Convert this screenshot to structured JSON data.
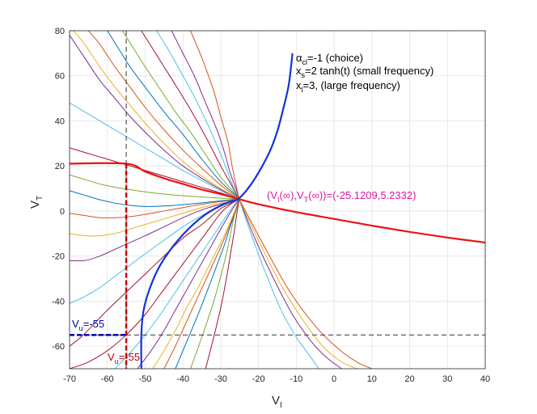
{
  "chart_data": {
    "type": "line",
    "xlabel": {
      "main": "V",
      "sub": "I"
    },
    "ylabel": {
      "main": "V",
      "sub": "T"
    },
    "xlim": [
      -70,
      40
    ],
    "ylim": [
      -70,
      80
    ],
    "xticks": [
      -70,
      -60,
      -50,
      -40,
      -30,
      -20,
      -10,
      0,
      10,
      20,
      30,
      40
    ],
    "yticks": [
      -60,
      -40,
      -20,
      0,
      20,
      40,
      60,
      80
    ],
    "grid": true,
    "legend_text": [
      {
        "main": "α",
        "sub": "cl",
        "rest": "=-1 (choice)"
      },
      {
        "main": "x",
        "sub": "s",
        "rest": "=2 tanh(t) (small frequency)"
      },
      {
        "main": "x",
        "sub": "l",
        "rest": "=3, (large frequency)"
      }
    ],
    "equilibrium": {
      "label": "(V_I(∞),V_T(∞))=(-25.1209,5.2332)",
      "label_parts": [
        "(V",
        "I",
        "(∞),V",
        "T",
        "(∞))=(-25.1209,5.2332)"
      ],
      "point": [
        -25.1209,
        5.2332
      ],
      "color": "#e0189e"
    },
    "thresholds": {
      "Vu": {
        "label_main": "V",
        "label_sub": "u",
        "label_rest": "=-55",
        "value": -55,
        "color": "#0000aa"
      },
      "Vl": {
        "label_main": "V",
        "label_sub": "u",
        "label_rest": "=-55",
        "value": -55,
        "color": "#cc0000"
      }
    },
    "series": [
      {
        "name": "red-nullcline",
        "color": "#ee1111",
        "width": 2.2,
        "x": [
          -70,
          -55,
          -50,
          -45,
          -40,
          -35,
          -30,
          -25,
          -20,
          -10,
          0,
          10,
          20,
          30,
          40
        ],
        "y": [
          21,
          21,
          17.5,
          14.5,
          12,
          9.5,
          7.5,
          5.2,
          3.0,
          -0.5,
          -3.5,
          -6.5,
          -9.3,
          -11.8,
          -14.0
        ]
      },
      {
        "name": "blue-nullcline",
        "color": "#1133dd",
        "width": 2.2,
        "x": [
          -51,
          -51,
          -50.5,
          -49.5,
          -48,
          -46,
          -43,
          -40,
          -37,
          -34,
          -31,
          -28,
          -25.5,
          -23,
          -20,
          -17,
          -15,
          -13.5,
          -12,
          -11
        ],
        "y": [
          -70,
          -55,
          -45,
          -38,
          -31,
          -24,
          -16.5,
          -10.5,
          -5.5,
          -1.5,
          1.5,
          3.8,
          5.2,
          9.5,
          17,
          26.5,
          35.5,
          45,
          56,
          70
        ]
      },
      {
        "name": "traj-1",
        "color": "#a2142f",
        "x": [
          -70,
          -67,
          -64,
          -60,
          -55,
          -50,
          -45,
          -40,
          -35,
          -30,
          -26,
          -25.1
        ],
        "y": [
          -60,
          -56,
          -51,
          -44,
          -36,
          -28,
          -20,
          -12,
          -6,
          1,
          4.5,
          5.2
        ]
      },
      {
        "name": "traj-2",
        "color": "#4dbeee",
        "x": [
          -70,
          -66,
          -62,
          -58,
          -54,
          -50,
          -45,
          -40,
          -35,
          -30,
          -26,
          -25.1
        ],
        "y": [
          -41,
          -38,
          -34,
          -29,
          -24,
          -19,
          -13,
          -7,
          -2,
          2.5,
          4.8,
          5.2
        ]
      },
      {
        "name": "traj-3",
        "color": "#7e2f8e",
        "x": [
          -70,
          -66,
          -62,
          -58,
          -54,
          -50,
          -45,
          -40,
          -35,
          -30,
          -26,
          -25.1
        ],
        "y": [
          -22,
          -22,
          -20,
          -17,
          -14,
          -11,
          -7,
          -3,
          0.5,
          3,
          4.9,
          5.2
        ]
      },
      {
        "name": "traj-4",
        "color": "#edb120",
        "x": [
          -70,
          -66,
          -62,
          -58,
          -54,
          -50,
          -45,
          -40,
          -35,
          -30,
          -26,
          -25.1
        ],
        "y": [
          -10,
          -11,
          -11,
          -10,
          -8,
          -6,
          -3.5,
          -1,
          1.5,
          3.5,
          5,
          5.2
        ]
      },
      {
        "name": "traj-5",
        "color": "#d95319",
        "x": [
          -70,
          -66,
          -62,
          -58,
          -54,
          -50,
          -45,
          -40,
          -35,
          -30,
          -26,
          -25.1
        ],
        "y": [
          -1,
          -2,
          -3,
          -3,
          -2.5,
          -1.5,
          0,
          1.5,
          3,
          4.2,
          5.1,
          5.2
        ]
      },
      {
        "name": "traj-6",
        "color": "#0072bd",
        "x": [
          -70,
          -66,
          -62,
          -58,
          -54,
          -50,
          -45,
          -40,
          -35,
          -30,
          -26,
          -25.1
        ],
        "y": [
          9,
          7,
          5,
          3.5,
          2.5,
          2,
          2.2,
          2.8,
          3.6,
          4.5,
          5.1,
          5.2
        ]
      },
      {
        "name": "traj-7",
        "color": "#77ac30",
        "x": [
          -70,
          -66,
          -62,
          -58,
          -54,
          -50,
          -45,
          -40,
          -35,
          -30,
          -26,
          -25.1
        ],
        "y": [
          16,
          14,
          12,
          10.5,
          9.5,
          8.5,
          7.5,
          6.8,
          6.2,
          5.7,
          5.3,
          5.2
        ]
      },
      {
        "name": "traj-8",
        "color": "#a2142f",
        "x": [
          -70,
          -66,
          -62,
          -58,
          -54,
          -50,
          -45,
          -40,
          -35,
          -30,
          -26,
          -25.1
        ],
        "y": [
          28,
          26,
          24,
          22,
          20,
          18,
          15.5,
          13,
          10.5,
          8,
          5.8,
          5.2
        ]
      },
      {
        "name": "traj-9",
        "color": "#4dbeee",
        "x": [
          -70,
          -66,
          -62,
          -58,
          -54,
          -50,
          -45,
          -40,
          -35,
          -30,
          -26,
          -25.1
        ],
        "y": [
          48,
          44,
          40,
          36,
          32,
          28,
          23,
          18,
          13.5,
          9,
          6,
          5.2
        ]
      },
      {
        "name": "traj-10",
        "color": "#7e2f8e",
        "x": [
          -70,
          -66,
          -62,
          -58,
          -54,
          -50,
          -45,
          -40,
          -35,
          -30,
          -26,
          -25.1
        ],
        "y": [
          78,
          68,
          58,
          50,
          42,
          35,
          27,
          20,
          14.5,
          9.5,
          6,
          5.2
        ]
      },
      {
        "name": "traj-11",
        "color": "#edb120",
        "x": [
          -69,
          -66,
          -62,
          -58,
          -54,
          -50,
          -45,
          -40,
          -35,
          -30,
          -26,
          -25.1
        ],
        "y": [
          80,
          74,
          64,
          55,
          47,
          39,
          30,
          22,
          15.5,
          10,
          6.2,
          5.2
        ]
      },
      {
        "name": "traj-12",
        "color": "#d95319",
        "x": [
          -65,
          -62,
          -58,
          -54,
          -50,
          -45,
          -40,
          -35,
          -30,
          -26,
          -25.1
        ],
        "y": [
          80,
          74,
          64,
          55,
          46,
          36,
          27,
          19,
          11.5,
          6.5,
          5.2
        ]
      },
      {
        "name": "traj-13",
        "color": "#0072bd",
        "x": [
          -60,
          -57,
          -54,
          -50,
          -45,
          -40,
          -35,
          -30,
          -26,
          -25.1
        ],
        "y": [
          80,
          72,
          64,
          55,
          44,
          34,
          23,
          13,
          7,
          5.2
        ]
      },
      {
        "name": "traj-14",
        "color": "#77ac30",
        "x": [
          -56,
          -53,
          -50,
          -46,
          -42,
          -38,
          -34,
          -30,
          -26,
          -25.1
        ],
        "y": [
          80,
          72,
          64,
          54,
          44,
          35,
          25,
          15,
          7.5,
          5.2
        ]
      },
      {
        "name": "traj-15",
        "color": "#a2142f",
        "x": [
          -51,
          -48,
          -45,
          -42,
          -38,
          -34,
          -30,
          -27,
          -25.1
        ],
        "y": [
          80,
          72,
          64,
          56,
          45,
          33,
          20,
          11,
          5.2
        ]
      },
      {
        "name": "traj-16",
        "color": "#4dbeee",
        "x": [
          -47,
          -44,
          -41,
          -38,
          -35,
          -32,
          -29,
          -27,
          -25.1
        ],
        "y": [
          80,
          72,
          63,
          54,
          44,
          33,
          21,
          12,
          5.2
        ]
      },
      {
        "name": "traj-17",
        "color": "#7e2f8e",
        "x": [
          -43,
          -40,
          -37,
          -34,
          -31,
          -29,
          -27.5,
          -26,
          -25.1
        ],
        "y": [
          80,
          70,
          60,
          48,
          36,
          26,
          17,
          10,
          5.2
        ]
      },
      {
        "name": "traj-18",
        "color": "#d95319",
        "x": [
          -38,
          -35,
          -32,
          -30,
          -28,
          -27,
          -26,
          -25.1
        ],
        "y": [
          80,
          68,
          54,
          42,
          30,
          20,
          12,
          5.2
        ]
      },
      {
        "name": "traj-19",
        "color": "#a2142f",
        "x": [
          -70,
          -65,
          -60,
          -55,
          -50,
          -46,
          -42,
          -38,
          -34,
          -30,
          -27,
          -25.1
        ],
        "y": [
          -70,
          -67,
          -62,
          -55,
          -46,
          -37,
          -28,
          -19,
          -10,
          -1,
          3.5,
          5.2
        ]
      },
      {
        "name": "traj-20",
        "color": "#4dbeee",
        "x": [
          -58,
          -54,
          -50,
          -46,
          -42,
          -38,
          -34,
          -30,
          -27,
          -25.1
        ],
        "y": [
          -70,
          -63,
          -55,
          -46,
          -36,
          -26,
          -16,
          -6,
          1.5,
          5.2
        ]
      },
      {
        "name": "traj-21",
        "color": "#7e2f8e",
        "x": [
          -52,
          -48,
          -45,
          -42,
          -39,
          -36,
          -33,
          -30,
          -27,
          -25.1
        ],
        "y": [
          -70,
          -61,
          -53,
          -44,
          -35,
          -26,
          -17,
          -8,
          0.5,
          5.2
        ]
      },
      {
        "name": "traj-22",
        "color": "#edb120",
        "x": [
          -48,
          -45,
          -42,
          -39,
          -36,
          -33,
          -30,
          -28,
          -26,
          -25.1
        ],
        "y": [
          -70,
          -62,
          -53,
          -43,
          -34,
          -24,
          -14,
          -7,
          1,
          5.2
        ]
      },
      {
        "name": "traj-23",
        "color": "#d95319",
        "x": [
          -45,
          -42,
          -39,
          -36,
          -33,
          -30,
          -28,
          -26.5,
          -25.1
        ],
        "y": [
          -70,
          -60,
          -49,
          -38,
          -27,
          -16,
          -8,
          -1.5,
          5.2
        ]
      },
      {
        "name": "traj-24",
        "color": "#0072bd",
        "x": [
          -42,
          -39,
          -36,
          -33,
          -31,
          -29,
          -27.5,
          -26,
          -25.1
        ],
        "y": [
          -70,
          -58,
          -46,
          -33,
          -24,
          -15,
          -7,
          0,
          5.2
        ]
      },
      {
        "name": "traj-25",
        "color": "#77ac30",
        "x": [
          -38,
          -35,
          -32,
          -30,
          -28.5,
          -27.5,
          -26.5,
          -25.1
        ],
        "y": [
          -70,
          -56,
          -41,
          -29,
          -19,
          -11,
          -3,
          5.2
        ]
      },
      {
        "name": "traj-26",
        "color": "#a2142f",
        "x": [
          -34,
          -32,
          -30,
          -28.5,
          -27.5,
          -26.5,
          -25.8,
          -25.1
        ],
        "y": [
          -70,
          -57,
          -43,
          -30,
          -20,
          -10,
          -2,
          5.2
        ]
      },
      {
        "name": "traj-27",
        "color": "#4dbeee",
        "x": [
          -25.1,
          -22,
          -18,
          -14,
          -10,
          -7,
          -4
        ],
        "y": [
          5.2,
          -10,
          -28,
          -44,
          -56,
          -63,
          -70
        ]
      },
      {
        "name": "traj-28",
        "color": "#7e2f8e",
        "x": [
          -25.1,
          -21,
          -16,
          -11,
          -6,
          -2,
          2
        ],
        "y": [
          5.2,
          -12,
          -30,
          -46,
          -58,
          -65,
          -70
        ]
      },
      {
        "name": "traj-29",
        "color": "#edb120",
        "x": [
          -25.1,
          -20,
          -14,
          -8,
          -3,
          2,
          6
        ],
        "y": [
          5.2,
          -13,
          -33,
          -49,
          -60,
          -67,
          -70
        ]
      },
      {
        "name": "traj-30",
        "color": "#d95319",
        "x": [
          -25.1,
          -19,
          -12,
          -5,
          1,
          6,
          10
        ],
        "y": [
          5.2,
          -14,
          -35,
          -51,
          -61,
          -67,
          -70
        ]
      }
    ]
  }
}
